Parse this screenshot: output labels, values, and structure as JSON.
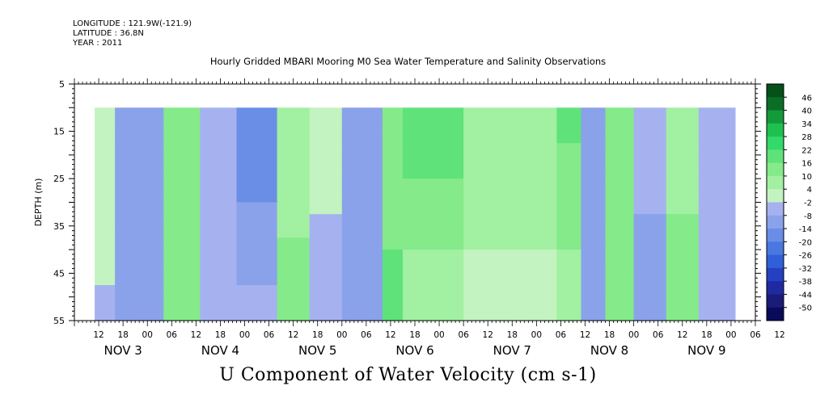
{
  "header": {
    "longitude": "LONGITUDE : 121.9W(-121.9)",
    "latitude": "LATITUDE : 36.8N",
    "year": "YEAR : 2011"
  },
  "chart_data": {
    "type": "heatmap",
    "title": "Hourly Gridded MBARI Mooring M0 Sea Water Temperature and Salinity Observations",
    "xlabel": "U Component of Water Velocity (cm s-1)",
    "ylabel": "DEPTH (m)",
    "x_range_hours": [
      0,
      168
    ],
    "data_x_range_hours": [
      5,
      163
    ],
    "ylim": [
      55,
      5
    ],
    "data_depth_range": [
      10,
      55
    ],
    "y_ticks": [
      5,
      15,
      25,
      35,
      45,
      55
    ],
    "x_tick_labels": [
      "12",
      "18",
      "00",
      "06",
      "12",
      "18",
      "00",
      "06",
      "12",
      "18",
      "00",
      "06",
      "12",
      "18",
      "00",
      "06",
      "12",
      "18",
      "00",
      "06",
      "12",
      "18",
      "00",
      "06",
      "12",
      "18",
      "00",
      "06",
      "12"
    ],
    "day_labels": [
      "NOV 3",
      "NOV 4",
      "NOV 5",
      "NOV 6",
      "NOV 7",
      "NOV 8",
      "NOV 9"
    ],
    "colorbar_levels": [
      -50,
      -44,
      -38,
      -32,
      -26,
      -20,
      -14,
      -8,
      -2,
      4,
      10,
      16,
      22,
      28,
      34,
      40,
      46
    ],
    "colorbar_labels": [
      "-50",
      "-44",
      "-38",
      "-32",
      "-26",
      "-20",
      "-14",
      "-8",
      "-2",
      "4",
      "10",
      "16",
      "22",
      "28",
      "34",
      "40",
      "46"
    ],
    "colorbar_colors": [
      "#0a0a5a",
      "#1b1b7a",
      "#202aa0",
      "#2540c0",
      "#3060d8",
      "#4a78e0",
      "#6a8ee6",
      "#8aa2ea",
      "#a6b2f0",
      "#c2f3c0",
      "#a2f0a2",
      "#84ea8a",
      "#5fe27a",
      "#33d96a",
      "#1ec050",
      "#149a3a",
      "#0b6e26",
      "#06501a"
    ],
    "bands": [
      {
        "x": [
          5,
          10
        ],
        "top": 2.5,
        "bottom": -3
      },
      {
        "x": [
          10,
          22
        ],
        "top": -8,
        "bottom": -14
      },
      {
        "x": [
          22,
          31
        ],
        "top": 10,
        "bottom": 16
      },
      {
        "x": [
          31,
          40
        ],
        "top": -6,
        "bottom": -8
      },
      {
        "x": [
          40,
          50
        ],
        "top": -20,
        "bottom": -6
      },
      {
        "x": [
          50,
          58
        ],
        "top": 4,
        "bottom": 14
      },
      {
        "x": [
          58,
          66
        ],
        "top": 0,
        "bottom": -4
      },
      {
        "x": [
          66,
          76
        ],
        "top": -14,
        "bottom": -10
      },
      {
        "x": [
          76,
          81
        ],
        "top": 12,
        "bottom": 18
      },
      {
        "x": [
          81,
          96
        ],
        "top": 22,
        "bottom": 4
      },
      {
        "x": [
          96,
          119
        ],
        "top": 8,
        "bottom": 2
      },
      {
        "x": [
          119,
          125
        ],
        "top": 18,
        "bottom": 6
      },
      {
        "x": [
          125,
          131
        ],
        "top": -14,
        "bottom": -8
      },
      {
        "x": [
          131,
          138
        ],
        "top": 16,
        "bottom": 14
      },
      {
        "x": [
          138,
          146
        ],
        "top": -6,
        "bottom": -10
      },
      {
        "x": [
          146,
          154
        ],
        "top": 4,
        "bottom": 16
      },
      {
        "x": [
          154,
          163
        ],
        "top": -8,
        "bottom": -2
      }
    ],
    "grid": false,
    "legend": "colorbar-right"
  }
}
